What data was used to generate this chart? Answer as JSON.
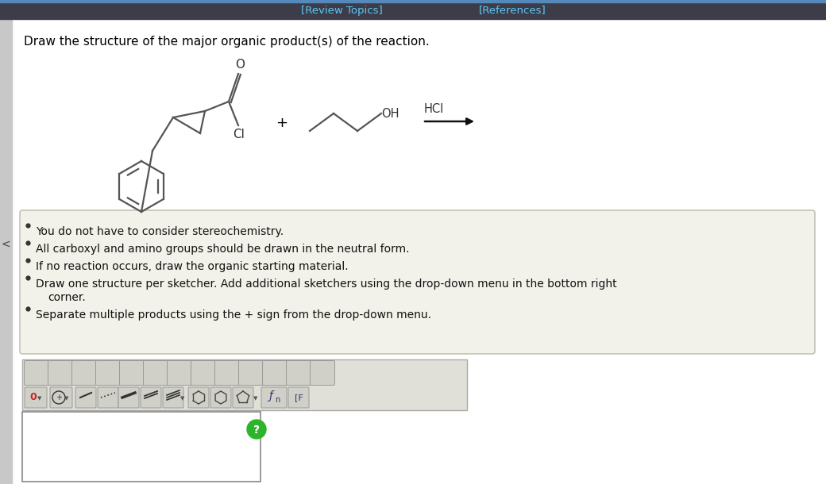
{
  "title_bar_color": "#3d3d4a",
  "review_topics_text": "[Review Topics]",
  "references_text": "[References]",
  "header_text_color": "#5bc8f5",
  "bg_color": "#ffffff",
  "main_question": "Draw the structure of the major organic product(s) of the reaction.",
  "bullet_points": [
    "You do not have to consider stereochemistry.",
    "All carboxyl and amino groups should be drawn in the neutral form.",
    "If no reaction occurs, draw the organic starting material.",
    "Draw one structure per sketcher. Add additional sketchers using the drop-down menu in the bottom right",
    "corner.",
    "Separate multiple products using the + sign from the drop-down menu."
  ],
  "bullet_points_raw": [
    {
      "text": "You do not have to consider stereochemistry.",
      "indent": false
    },
    {
      "text": "All carboxyl and amino groups should be drawn in the neutral form.",
      "indent": false
    },
    {
      "text": "If no reaction occurs, draw the organic starting material.",
      "indent": false
    },
    {
      "text": "Draw one structure per sketcher. Add additional sketchers using the drop-down menu in the bottom right",
      "indent": false
    },
    {
      "text": "corner.",
      "indent": true
    },
    {
      "text": "Separate multiple products using the + sign from the drop-down menu.",
      "indent": false
    }
  ],
  "bullet_box_color": "#f2f2ea",
  "bullet_box_border": "#ccccbb",
  "mol_line_color": "#555555",
  "mol_lw": 1.6
}
